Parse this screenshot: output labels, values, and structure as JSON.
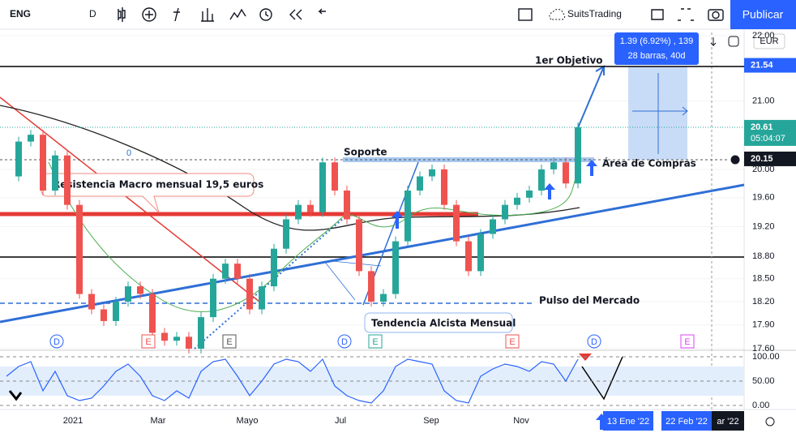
{
  "toolbar": {
    "symbol": "ENG",
    "interval": "D",
    "account": "SuitsTrading",
    "publish": "Publicar"
  },
  "price_axis": {
    "currency": "EUR",
    "log_scale": true,
    "ticks": [
      {
        "value": 22,
        "label": "22.00"
      },
      {
        "value": 21,
        "label": "21.00"
      },
      {
        "value": 20,
        "label": "20.00"
      },
      {
        "value": 19.6,
        "label": "19.60"
      },
      {
        "value": 19.2,
        "label": "19.20"
      },
      {
        "value": 18.8,
        "label": "18.80"
      },
      {
        "value": 18.5,
        "label": "18.50"
      },
      {
        "value": 18.2,
        "label": "18.20"
      },
      {
        "value": 17.9,
        "label": "17.90"
      },
      {
        "value": 17.6,
        "label": "17.60"
      }
    ],
    "tags": {
      "target": {
        "value": 21.54,
        "label": "21.54"
      },
      "last": {
        "value": 20.61,
        "label": "20.61"
      },
      "countdown": "05:04:07",
      "support": {
        "value": 20.15,
        "label": "20.15"
      }
    }
  },
  "oscillator": {
    "ticks": [
      {
        "value": 100,
        "label": "100.00"
      },
      {
        "value": 50,
        "label": "50.00"
      },
      {
        "value": 0,
        "label": "0.00"
      }
    ],
    "values": [
      60,
      80,
      90,
      30,
      70,
      20,
      10,
      15,
      40,
      70,
      85,
      60,
      20,
      10,
      30,
      15,
      70,
      90,
      95,
      60,
      20,
      50,
      85,
      95,
      90,
      70,
      95,
      40,
      20,
      10,
      5,
      30,
      80,
      95,
      90,
      85,
      30,
      10,
      5,
      60,
      75,
      85,
      80,
      70,
      90,
      85,
      50,
      95
    ]
  },
  "closes": [
    19.9,
    20.4,
    20.5,
    19.7,
    20.2,
    19.5,
    18.3,
    18.1,
    17.95,
    18.2,
    18.4,
    18.3,
    17.8,
    17.7,
    17.75,
    17.6,
    18.0,
    18.5,
    18.7,
    18.5,
    18.1,
    18.4,
    18.9,
    19.3,
    19.5,
    19.4,
    20.1,
    19.7,
    19.3,
    18.6,
    18.2,
    18.3,
    19.0,
    19.7,
    19.9,
    20.0,
    19.5,
    19.0,
    18.6,
    19.1,
    19.3,
    19.5,
    19.6,
    19.7,
    20.0,
    20.1,
    19.8,
    20.61
  ],
  "time_axis": {
    "labels": [
      "2021",
      "Mar",
      "Mayo",
      "Jul",
      "Sep",
      "Nov"
    ],
    "tags": [
      "13 Ene '22",
      "22 Feb '22",
      "ar '22"
    ]
  },
  "annotations": {
    "target": "1er Objetivo",
    "support": "Soporte",
    "buy_zone": "Área de Compras",
    "resistance": "Resistencia Macro mensual 19,5 euros",
    "pulse": "Pulso del Mercado",
    "trend": "Tendencia Alcista Mensual",
    "fib": "0",
    "measure": [
      "1.39 (6.92%) , 139",
      "28 barras, 40d"
    ]
  },
  "events": [
    "D",
    "E",
    "E",
    "D",
    "E",
    "E",
    "D",
    "E"
  ]
}
